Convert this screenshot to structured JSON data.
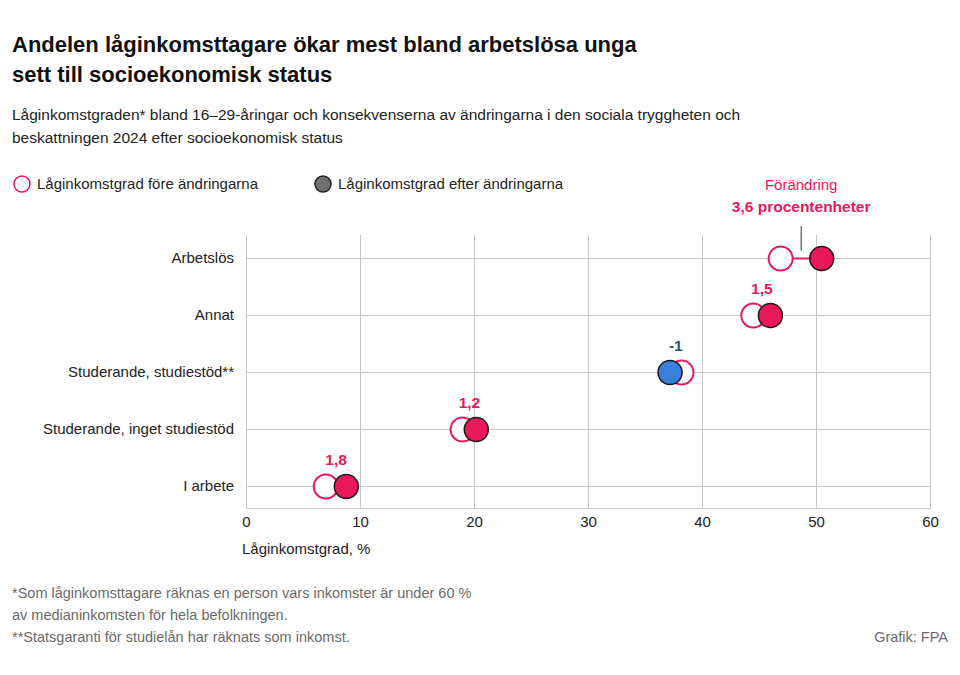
{
  "chart_data": {
    "type": "dot",
    "title": "Andelen låginkomsttagare ökar mest bland arbetslösa unga\nsett till socioekonomisk status",
    "subtitle": "Låginkomstgraden* bland 16–29-åringar och konsekvenserna av ändringarna i den sociala tryggheten och\nbeskattningen 2024 efter socioekonomisk status",
    "categories": [
      "Arbetslös",
      "Annat",
      "Studerande, studiestöd**",
      "Studerande, inget studiestöd",
      "I arbete"
    ],
    "series": [
      {
        "name": "Låginkomstgrad före ändringarna",
        "color": "#e8185a",
        "marker": "hollow-circle",
        "values": [
          46.9,
          44.5,
          38.2,
          19.0,
          7.0
        ]
      },
      {
        "name": "Låginkomstgrad efter ändringarna",
        "color": "#707070",
        "marker": "circle",
        "colors": [
          "#e8185a",
          "#e8185a",
          "#3b7fdc",
          "#e8185a",
          "#e8185a"
        ],
        "values": [
          50.5,
          46.0,
          37.2,
          20.2,
          8.8
        ]
      }
    ],
    "changes": [
      3.6,
      1.5,
      -1,
      1.2,
      1.8
    ],
    "change_labels": [
      "3,6 procentenheter",
      "1,5",
      "-1",
      "1,2",
      "1,8"
    ],
    "change_annotation": "Förändring",
    "xlabel": "Låginkomstgrad, %",
    "xlim": [
      0,
      60
    ],
    "xticks": [
      0,
      10,
      20,
      30,
      40,
      50,
      60
    ],
    "grid": true,
    "notes": [
      "*Som låginkomsttagare räknas en person vars inkomster är under 60 %",
      "av medianinkomsten för hela befolkningen.",
      "**Statsgaranti för studielån har räknats som inkomst."
    ],
    "source": "Grafik: FPA"
  }
}
